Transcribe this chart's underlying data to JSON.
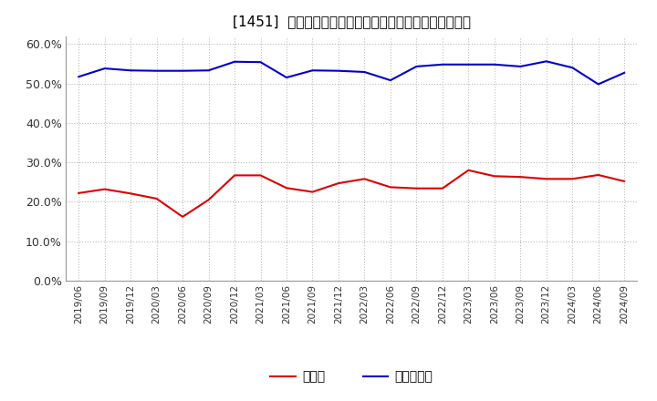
{
  "title": "[1451]  現預金、有利子負債の総資産に対する比率の推移",
  "ylim": [
    0.0,
    0.62
  ],
  "ytick_vals": [
    0.0,
    0.1,
    0.2,
    0.3,
    0.4,
    0.5,
    0.6
  ],
  "ytick_labels": [
    "0.0%",
    "10.0%",
    "20.0%",
    "30.0%",
    "40.0%",
    "50.0%",
    "60.0%"
  ],
  "background_color": "#ffffff",
  "dates": [
    "2019/06",
    "2019/09",
    "2019/12",
    "2020/03",
    "2020/06",
    "2020/09",
    "2020/12",
    "2021/03",
    "2021/06",
    "2021/09",
    "2021/12",
    "2022/03",
    "2022/06",
    "2022/09",
    "2022/12",
    "2023/03",
    "2023/06",
    "2023/09",
    "2023/12",
    "2024/03",
    "2024/06",
    "2024/09"
  ],
  "cash": [
    0.222,
    0.232,
    0.221,
    0.208,
    0.162,
    0.205,
    0.267,
    0.267,
    0.235,
    0.225,
    0.247,
    0.258,
    0.237,
    0.234,
    0.234,
    0.28,
    0.265,
    0.263,
    0.258,
    0.258,
    0.268,
    0.252
  ],
  "debt": [
    0.517,
    0.538,
    0.533,
    0.532,
    0.532,
    0.533,
    0.555,
    0.554,
    0.515,
    0.533,
    0.532,
    0.529,
    0.508,
    0.543,
    0.548,
    0.548,
    0.548,
    0.543,
    0.556,
    0.54,
    0.498,
    0.527
  ],
  "cash_color": "#dd0000",
  "debt_color": "#0000cc",
  "cash_label": "現預金",
  "debt_label": "有利子負債",
  "line_width": 1.5
}
